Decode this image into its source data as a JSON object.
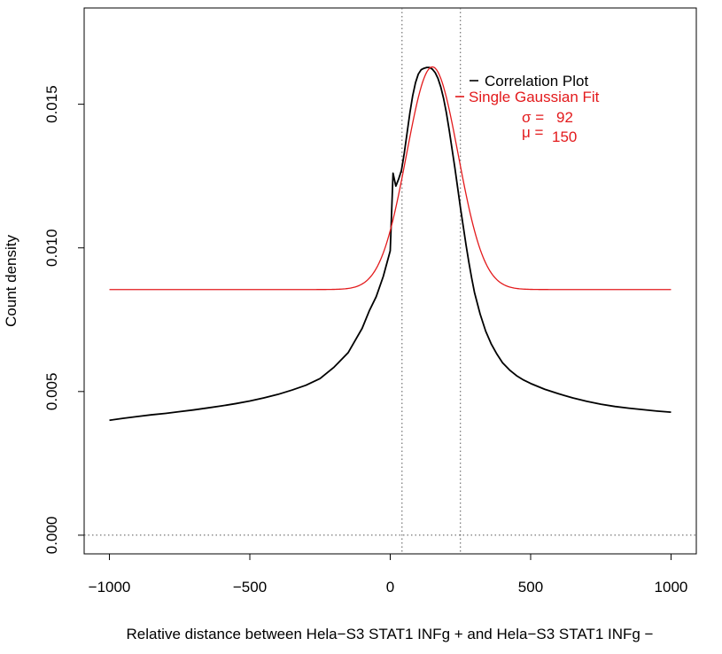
{
  "chart_data": {
    "type": "line",
    "title": "",
    "xlabel": "Relative distance between Hela−S3 STAT1 INFg + and Hela−S3 STAT1 INFg −",
    "ylabel": "Count density",
    "xlim": [
      -1090,
      1090
    ],
    "ylim": [
      -0.00065,
      0.01835
    ],
    "xticks": [
      -1000,
      -500,
      0,
      500,
      1000
    ],
    "xtick_labels": [
      "−1000",
      "−500",
      "0",
      "500",
      "1000"
    ],
    "yticks": [
      0.0,
      0.005,
      0.01,
      0.015
    ],
    "ytick_labels": [
      "0.000",
      "0.005",
      "0.010",
      "0.015"
    ],
    "grid": false,
    "legend": {
      "position": "top-right",
      "entries": [
        {
          "label": "Correlation Plot",
          "color": "#000000"
        },
        {
          "label": "Single Gaussian Fit",
          "color": "#e31a1c"
        }
      ]
    },
    "annotations": {
      "sigma_symbol": "σ =",
      "sigma_value": "92",
      "mu_symbol": "μ =",
      "mu_value": "150"
    },
    "reference_lines": {
      "vertical": [
        42,
        250
      ],
      "horizontal": [
        0.0
      ],
      "style": "dotted"
    },
    "series": [
      {
        "name": "Correlation Plot",
        "color": "#000000",
        "x": [
          -1000,
          -950,
          -900,
          -850,
          -800,
          -750,
          -700,
          -650,
          -600,
          -550,
          -500,
          -450,
          -400,
          -350,
          -300,
          -250,
          -200,
          -150,
          -100,
          -75,
          -50,
          -25,
          0,
          10,
          20,
          30,
          40,
          50,
          60,
          70,
          80,
          90,
          100,
          110,
          120,
          130,
          140,
          150,
          160,
          170,
          180,
          190,
          200,
          210,
          220,
          230,
          240,
          250,
          260,
          270,
          280,
          290,
          300,
          320,
          340,
          360,
          380,
          400,
          425,
          450,
          475,
          500,
          525,
          550,
          600,
          650,
          700,
          750,
          800,
          850,
          900,
          950,
          1000
        ],
        "y": [
          0.004,
          0.00407,
          0.00413,
          0.00419,
          0.00424,
          0.0043,
          0.00436,
          0.00443,
          0.0045,
          0.00458,
          0.00467,
          0.00478,
          0.0049,
          0.00505,
          0.00522,
          0.00545,
          0.00585,
          0.00635,
          0.0072,
          0.0078,
          0.0083,
          0.009,
          0.0099,
          0.0126,
          0.01215,
          0.0124,
          0.0127,
          0.0133,
          0.014,
          0.0147,
          0.0153,
          0.01575,
          0.01605,
          0.0162,
          0.01625,
          0.01628,
          0.01628,
          0.01622,
          0.0161,
          0.0159,
          0.0156,
          0.0152,
          0.0147,
          0.0141,
          0.01345,
          0.0128,
          0.0121,
          0.0114,
          0.01075,
          0.0101,
          0.0095,
          0.00895,
          0.00845,
          0.0077,
          0.0071,
          0.00665,
          0.0063,
          0.006,
          0.00575,
          0.00555,
          0.0054,
          0.00528,
          0.00518,
          0.00508,
          0.00492,
          0.00478,
          0.00466,
          0.00456,
          0.00448,
          0.00442,
          0.00437,
          0.00432,
          0.00428
        ]
      },
      {
        "name": "Single Gaussian Fit",
        "color": "#e31a1c",
        "model": "gaussian",
        "baseline": 0.00855,
        "amplitude": 0.00775,
        "mu": 150,
        "sigma": 92,
        "x_range": [
          -1000,
          1000
        ]
      }
    ]
  }
}
